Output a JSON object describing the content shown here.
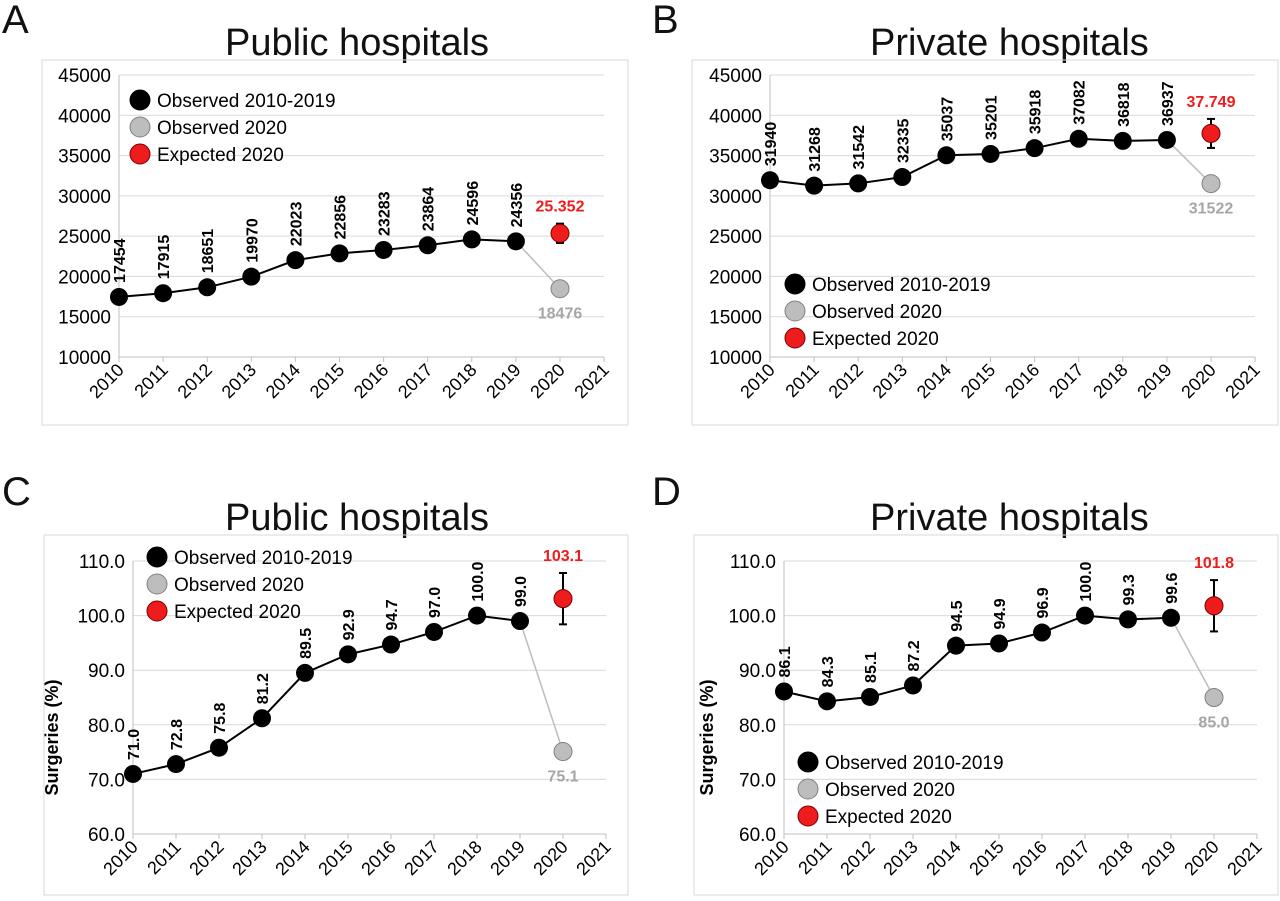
{
  "chart_data": [
    {
      "type": "line",
      "panel_label": "A",
      "title": "Public hospitals",
      "ylabel": "",
      "ylim": [
        10000,
        45000
      ],
      "y_ticks": [
        "10000",
        "15000",
        "20000",
        "25000",
        "30000",
        "35000",
        "40000",
        "45000"
      ],
      "x_ticks": [
        "2010",
        "2011",
        "2012",
        "2013",
        "2014",
        "2015",
        "2016",
        "2017",
        "2018",
        "2019",
        "2020",
        "2021"
      ],
      "xlim": [
        2010,
        2021
      ],
      "grid": "horizontal",
      "legend_position": "top-left",
      "series": [
        {
          "name": "Observed 2010-2019",
          "color": "#000000",
          "x": [
            2010,
            2011,
            2012,
            2013,
            2014,
            2015,
            2016,
            2017,
            2018,
            2019
          ],
          "y": [
            17454,
            17915,
            18651,
            19970,
            22023,
            22856,
            23283,
            23864,
            24596,
            24356
          ],
          "labels": [
            "17454",
            "17915",
            "18651",
            "19970",
            "22023",
            "22856",
            "23283",
            "23864",
            "24596",
            "24356"
          ]
        },
        {
          "name": "Observed 2020",
          "color": "#bdbdbd",
          "x": [
            2020
          ],
          "y": [
            18476
          ],
          "labels": [
            "18476"
          ]
        },
        {
          "name": "Expected 2020",
          "color": "#ee1c1c",
          "x": [
            2020
          ],
          "y": [
            25352
          ],
          "labels": [
            "25.352"
          ],
          "error": [
            1200
          ]
        }
      ]
    },
    {
      "type": "line",
      "panel_label": "B",
      "title": "Private hospitals",
      "ylabel": "",
      "ylim": [
        10000,
        45000
      ],
      "y_ticks": [
        "10000",
        "15000",
        "20000",
        "25000",
        "30000",
        "35000",
        "40000",
        "45000"
      ],
      "x_ticks": [
        "2010",
        "2011",
        "2012",
        "2013",
        "2014",
        "2015",
        "2016",
        "2017",
        "2018",
        "2019",
        "2020",
        "2021"
      ],
      "xlim": [
        2010,
        2021
      ],
      "grid": "horizontal",
      "legend_position": "bottom-left",
      "series": [
        {
          "name": "Observed 2010-2019",
          "color": "#000000",
          "x": [
            2010,
            2011,
            2012,
            2013,
            2014,
            2015,
            2016,
            2017,
            2018,
            2019
          ],
          "y": [
            31940,
            31268,
            31542,
            32335,
            35037,
            35201,
            35918,
            37082,
            36818,
            36937
          ],
          "labels": [
            "31940",
            "31268",
            "31542",
            "32335",
            "35037",
            "35201",
            "35918",
            "37082",
            "36818",
            "36937"
          ]
        },
        {
          "name": "Observed 2020",
          "color": "#bdbdbd",
          "x": [
            2020
          ],
          "y": [
            31522
          ],
          "labels": [
            "31522"
          ]
        },
        {
          "name": "Expected 2020",
          "color": "#ee1c1c",
          "x": [
            2020
          ],
          "y": [
            37749
          ],
          "labels": [
            "37.749"
          ],
          "error": [
            1800
          ]
        }
      ]
    },
    {
      "type": "line",
      "panel_label": "C",
      "title": "Public hospitals",
      "ylabel": "Surgeries (%)",
      "ylim": [
        60,
        110
      ],
      "y_ticks": [
        "60.0",
        "70.0",
        "80.0",
        "90.0",
        "100.0",
        "110.0"
      ],
      "x_ticks": [
        "2010",
        "2011",
        "2012",
        "2013",
        "2014",
        "2015",
        "2016",
        "2017",
        "2018",
        "2019",
        "2020",
        "2021"
      ],
      "xlim": [
        2010,
        2021
      ],
      "grid": "horizontal",
      "legend_position": "top-left",
      "series": [
        {
          "name": "Observed 2010-2019",
          "color": "#000000",
          "x": [
            2010,
            2011,
            2012,
            2013,
            2014,
            2015,
            2016,
            2017,
            2018,
            2019
          ],
          "y": [
            71.0,
            72.8,
            75.8,
            81.2,
            89.5,
            92.9,
            94.7,
            97.0,
            100.0,
            99.0
          ],
          "labels": [
            "71.0",
            "72.8",
            "75.8",
            "81.2",
            "89.5",
            "92.9",
            "94.7",
            "97.0",
            "100.0",
            "99.0"
          ]
        },
        {
          "name": "Observed 2020",
          "color": "#bdbdbd",
          "x": [
            2020
          ],
          "y": [
            75.1
          ],
          "labels": [
            "75.1"
          ]
        },
        {
          "name": "Expected 2020",
          "color": "#ee1c1c",
          "x": [
            2020
          ],
          "y": [
            103.1
          ],
          "labels": [
            "103.1"
          ],
          "error": [
            4.7
          ]
        }
      ]
    },
    {
      "type": "line",
      "panel_label": "D",
      "title": "Private hospitals",
      "ylabel": "Surgeries (%)",
      "ylim": [
        60,
        110
      ],
      "y_ticks": [
        "60.0",
        "70.0",
        "80.0",
        "90.0",
        "100.0",
        "110.0"
      ],
      "x_ticks": [
        "2010",
        "2011",
        "2012",
        "2013",
        "2014",
        "2015",
        "2016",
        "2017",
        "2018",
        "2019",
        "2020",
        "2021"
      ],
      "xlim": [
        2010,
        2021
      ],
      "grid": "horizontal",
      "legend_position": "bottom-left",
      "series": [
        {
          "name": "Observed 2010-2019",
          "color": "#000000",
          "x": [
            2010,
            2011,
            2012,
            2013,
            2014,
            2015,
            2016,
            2017,
            2018,
            2019
          ],
          "y": [
            86.1,
            84.3,
            85.1,
            87.2,
            94.5,
            94.9,
            96.9,
            100.0,
            99.3,
            99.6
          ],
          "labels": [
            "86.1",
            "84.3",
            "85.1",
            "87.2",
            "94.5",
            "94.9",
            "96.9",
            "100.0",
            "99.3",
            "99.6"
          ]
        },
        {
          "name": "Observed 2020",
          "color": "#bdbdbd",
          "x": [
            2020
          ],
          "y": [
            85.0
          ],
          "labels": [
            "85.0"
          ]
        },
        {
          "name": "Expected 2020",
          "color": "#ee1c1c",
          "x": [
            2020
          ],
          "y": [
            101.8
          ],
          "labels": [
            "101.8"
          ],
          "error": [
            4.7
          ]
        }
      ]
    }
  ]
}
